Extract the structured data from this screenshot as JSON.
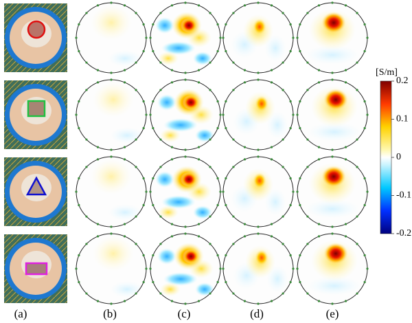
{
  "panel_labels": [
    "(a)",
    "(b)",
    "(c)",
    "(d)",
    "(e)"
  ],
  "colorbar": {
    "label": "[S/m]",
    "lim": [
      -0.2,
      0.2
    ],
    "ticks": [
      0.2,
      0.1,
      0,
      -0.1,
      -0.2
    ]
  }
}
